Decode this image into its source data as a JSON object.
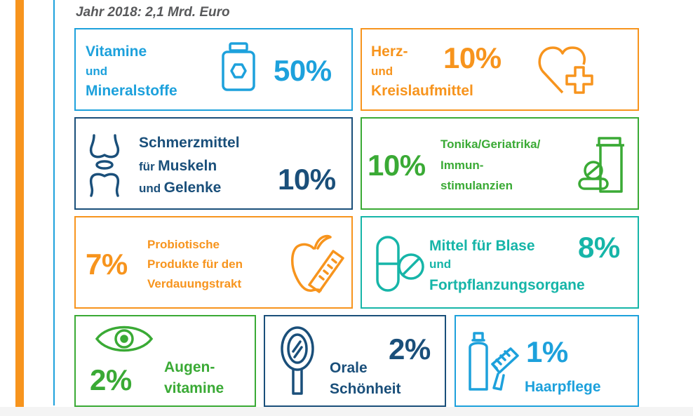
{
  "subtitle": "Jahr 2018: 2,1 Mrd. Euro",
  "colors": {
    "blue": "#1da1dc",
    "orange": "#f7941d",
    "navy": "#1a4f7a",
    "green": "#3aaa35",
    "teal": "#16b5a8"
  },
  "cards": {
    "vitamine": {
      "line1": "Vitamine",
      "line2": "und",
      "line3": "Mineralstoffe",
      "value": "50%",
      "icon": "supplement-jar-icon"
    },
    "herz": {
      "line1": "Herz-",
      "line2": "und",
      "line3": "Kreislaufmittel",
      "value": "10%",
      "icon": "heart-cross-icon"
    },
    "schmerz": {
      "line1": "Schmerzmittel",
      "line2a": "für",
      "line2b": "Muskeln",
      "line3a": "und",
      "line3b": "Gelenke",
      "value": "10%",
      "icon": "joint-icon"
    },
    "tonika": {
      "line1": "Tonika/Geriatrika/",
      "line2": "Immun-",
      "line3": "stimulanzien",
      "value": "10%",
      "icon": "pill-bottle-icon"
    },
    "probiotisch": {
      "line1": "Probiotische",
      "line2": "Produkte für den",
      "line3": "Verdauungstrakt",
      "value": "7%",
      "icon": "apple-measure-icon"
    },
    "blase": {
      "line1": "Mittel für Blase",
      "line2": "und",
      "line3": "Fortpflanzungsorgane",
      "value": "8%",
      "icon": "capsule-tablet-icon"
    },
    "augen": {
      "line1": "Augen-",
      "line2": "vitamine",
      "value": "2%",
      "icon": "eye-icon"
    },
    "oral": {
      "line1": "Orale",
      "line2": "Schönheit",
      "value": "2%",
      "icon": "hand-mirror-icon"
    },
    "haar": {
      "line1": "Haarpflege",
      "value": "1%",
      "icon": "bottle-brush-icon"
    }
  }
}
